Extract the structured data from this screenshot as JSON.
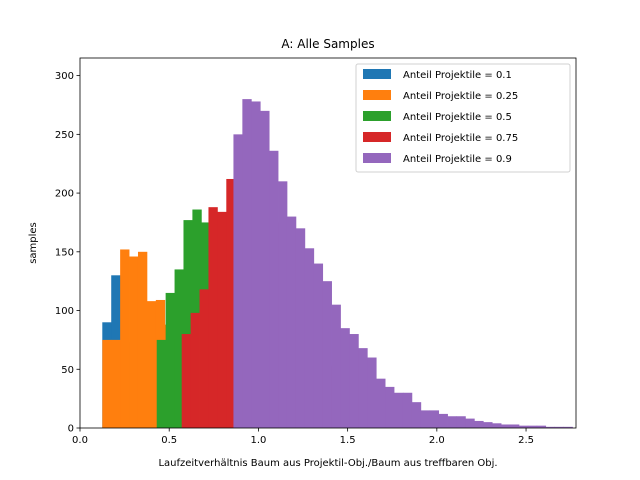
{
  "chart_data": {
    "type": "histogram",
    "title": "A: Alle Samples",
    "xlabel": "Laufzeitverhältnis Baum aus Projektil-Obj./Baum aus treffbaren Obj.",
    "ylabel": "samples",
    "xlim": [
      0.0,
      2.78
    ],
    "ylim": [
      0,
      315
    ],
    "xticks": [
      0.0,
      0.5,
      1.0,
      1.5,
      2.0,
      2.5
    ],
    "xtick_labels": [
      "0.0",
      "0.5",
      "1.0",
      "1.5",
      "2.0",
      "2.5"
    ],
    "yticks": [
      0,
      50,
      100,
      150,
      200,
      250,
      300
    ],
    "ytick_labels": [
      "0",
      "50",
      "100",
      "150",
      "200",
      "250",
      "300"
    ],
    "bin_width": 0.05,
    "grid": false,
    "legend_position": "top-right",
    "series": [
      {
        "name": "Anteil Projektile = 0.1",
        "color": "#1f77b4",
        "bin_start": 0.125,
        "values": [
          90,
          130,
          73,
          57,
          58,
          47,
          67,
          28,
          21,
          25,
          18,
          29,
          28,
          38,
          37,
          35,
          28
        ]
      },
      {
        "name": "Anteil Projektile = 0.25",
        "color": "#ff7f0e",
        "bin_start": 0.125,
        "values": [
          75,
          75,
          152,
          146,
          150,
          108,
          109,
          88,
          76,
          92,
          100,
          87,
          65,
          85,
          98,
          105,
          100,
          90,
          72,
          58
        ]
      },
      {
        "name": "Anteil Projektile = 0.5",
        "color": "#2ca02c",
        "bin_start": 0.43,
        "values": [
          75,
          115,
          135,
          177,
          186,
          175,
          178,
          159,
          148,
          102,
          50,
          15,
          10
        ]
      },
      {
        "name": "Anteil Projektile = 0.75",
        "color": "#d62728",
        "bin_start": 0.57,
        "values": [
          80,
          98,
          118,
          188,
          184,
          212,
          197,
          245,
          229,
          200,
          175,
          132,
          106,
          88,
          65,
          60,
          53,
          25,
          20,
          15,
          10
        ]
      },
      {
        "name": "Anteil Projektile = 0.9",
        "color": "#9467bd",
        "bin_start": 0.86,
        "values": [
          250,
          280,
          278,
          270,
          236,
          210,
          180,
          170,
          153,
          140,
          125,
          105,
          85,
          80,
          68,
          60,
          42,
          35,
          30,
          30,
          22,
          15,
          15,
          12,
          10,
          10,
          8,
          6,
          5,
          4,
          3,
          3,
          2,
          2,
          2,
          1,
          1,
          1,
          0,
          0,
          0,
          0,
          0,
          0,
          0,
          0
        ]
      }
    ]
  }
}
